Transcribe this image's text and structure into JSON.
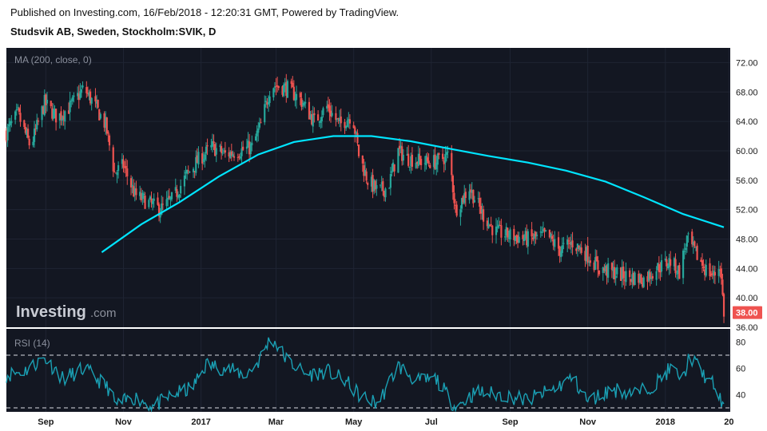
{
  "header": {
    "published": "Published on Investing.com, 16/Feb/2018 - 12:20:31 GMT, Powered by TradingView.",
    "symbol": "Studsvik AB, Sweden, Stockholm:SVIK, D"
  },
  "watermark": {
    "brand": "Investing",
    "suffix": ".com"
  },
  "colors": {
    "background": "#131722",
    "up": "#26a69a",
    "down": "#ef5350",
    "ma": "#00e5ff",
    "rsi": "#1aa0b4",
    "price_badge": "#ef5350"
  },
  "chart_data": [
    {
      "type": "candlestick",
      "indicator_label": "MA (200, close, 0)",
      "ylim": [
        36,
        74
      ],
      "y_ticks": [
        36,
        40,
        44,
        48,
        52,
        56,
        60,
        64,
        68,
        72
      ],
      "y_tick_labels": [
        "36.00",
        "40.00",
        "44.00",
        "48.00",
        "52.00",
        "56.00",
        "60.00",
        "64.00",
        "68.00",
        "72.00"
      ],
      "x_tick_labels": [
        "Sep",
        "Nov",
        "2017",
        "Mar",
        "May",
        "Jul",
        "Sep",
        "Nov",
        "2018",
        "20"
      ],
      "x_ticks": [
        "2016-09-01",
        "2016-11-01",
        "2017-01-01",
        "2017-03-01",
        "2017-05-01",
        "2017-07-01",
        "2017-09-01",
        "2017-11-01",
        "2018-01-01",
        "2018-02-20"
      ],
      "x_range": [
        "2016-08-01",
        "2018-02-21"
      ],
      "grid": true,
      "last_price_label": "38.00",
      "last_price": 38.0,
      "close_path": [
        [
          "2016-08-01",
          62.5
        ],
        [
          "2016-08-10",
          65.0
        ],
        [
          "2016-08-20",
          60.5
        ],
        [
          "2016-08-31",
          66.5
        ],
        [
          "2016-09-10",
          64.5
        ],
        [
          "2016-09-20",
          66.0
        ],
        [
          "2016-10-01",
          68.5
        ],
        [
          "2016-10-10",
          66.0
        ],
        [
          "2016-10-18",
          63.5
        ],
        [
          "2016-10-25",
          57.0
        ],
        [
          "2016-11-01",
          58.0
        ],
        [
          "2016-11-10",
          54.0
        ],
        [
          "2016-11-20",
          53.0
        ],
        [
          "2016-11-30",
          52.0
        ],
        [
          "2016-12-10",
          53.5
        ],
        [
          "2016-12-20",
          56.5
        ],
        [
          "2016-12-31",
          59.0
        ],
        [
          "2017-01-10",
          60.5
        ],
        [
          "2017-01-20",
          59.5
        ],
        [
          "2017-01-31",
          60.0
        ],
        [
          "2017-02-10",
          60.5
        ],
        [
          "2017-02-17",
          63.5
        ],
        [
          "2017-02-25",
          69.0
        ],
        [
          "2017-03-10",
          68.5
        ],
        [
          "2017-03-20",
          67.0
        ],
        [
          "2017-03-31",
          64.0
        ],
        [
          "2017-04-10",
          66.0
        ],
        [
          "2017-04-20",
          63.5
        ],
        [
          "2017-04-30",
          65.0
        ],
        [
          "2017-05-05",
          59.5
        ],
        [
          "2017-05-12",
          56.0
        ],
        [
          "2017-05-20",
          54.5
        ],
        [
          "2017-05-28",
          55.0
        ],
        [
          "2017-06-05",
          60.0
        ],
        [
          "2017-06-12",
          59.0
        ],
        [
          "2017-06-25",
          58.5
        ],
        [
          "2017-07-05",
          58.5
        ],
        [
          "2017-07-15",
          59.5
        ],
        [
          "2017-07-20",
          52.0
        ],
        [
          "2017-07-31",
          55.0
        ],
        [
          "2017-08-10",
          51.5
        ],
        [
          "2017-08-20",
          49.0
        ],
        [
          "2017-08-31",
          48.5
        ],
        [
          "2017-09-15",
          48.0
        ],
        [
          "2017-09-30",
          48.5
        ],
        [
          "2017-10-10",
          46.5
        ],
        [
          "2017-10-20",
          47.5
        ],
        [
          "2017-10-31",
          46.0
        ],
        [
          "2017-11-10",
          44.0
        ],
        [
          "2017-11-20",
          43.5
        ],
        [
          "2017-11-30",
          43.0
        ],
        [
          "2017-12-15",
          42.5
        ],
        [
          "2017-12-25",
          44.0
        ],
        [
          "2018-01-05",
          45.0
        ],
        [
          "2018-01-12",
          43.5
        ],
        [
          "2018-01-18",
          48.0
        ],
        [
          "2018-01-25",
          46.0
        ],
        [
          "2018-02-01",
          44.0
        ],
        [
          "2018-02-08",
          43.0
        ],
        [
          "2018-02-13",
          44.5
        ],
        [
          "2018-02-16",
          38.0
        ]
      ],
      "ma_200": [
        [
          "2016-10-15",
          46.2
        ],
        [
          "2016-11-15",
          50.0
        ],
        [
          "2016-12-15",
          53.0
        ],
        [
          "2017-01-15",
          56.5
        ],
        [
          "2017-02-15",
          59.5
        ],
        [
          "2017-03-15",
          61.2
        ],
        [
          "2017-04-15",
          62.0
        ],
        [
          "2017-05-15",
          62.0
        ],
        [
          "2017-06-15",
          61.3
        ],
        [
          "2017-07-15",
          60.3
        ],
        [
          "2017-08-15",
          59.3
        ],
        [
          "2017-09-15",
          58.4
        ],
        [
          "2017-10-15",
          57.3
        ],
        [
          "2017-11-15",
          55.8
        ],
        [
          "2017-12-15",
          53.7
        ],
        [
          "2018-01-15",
          51.4
        ],
        [
          "2018-02-16",
          49.6
        ]
      ]
    },
    {
      "type": "line",
      "indicator_label": "RSI (14)",
      "ylim": [
        27,
        90
      ],
      "y_ticks": [
        40,
        60,
        80
      ],
      "y_tick_labels": [
        "40",
        "60",
        "80"
      ],
      "reference_lines": [
        30,
        70
      ],
      "rsi_path": [
        [
          "2016-08-01",
          55
        ],
        [
          "2016-08-15",
          58
        ],
        [
          "2016-08-31",
          68
        ],
        [
          "2016-09-15",
          52
        ],
        [
          "2016-10-01",
          60
        ],
        [
          "2016-10-20",
          45
        ],
        [
          "2016-10-26",
          32
        ],
        [
          "2016-11-10",
          38
        ],
        [
          "2016-11-25",
          31
        ],
        [
          "2016-12-10",
          40
        ],
        [
          "2016-12-25",
          45
        ],
        [
          "2017-01-05",
          63
        ],
        [
          "2017-01-20",
          60
        ],
        [
          "2017-02-05",
          55
        ],
        [
          "2017-02-15",
          65
        ],
        [
          "2017-02-25",
          84
        ],
        [
          "2017-03-10",
          66
        ],
        [
          "2017-03-25",
          55
        ],
        [
          "2017-04-10",
          58
        ],
        [
          "2017-04-25",
          50
        ],
        [
          "2017-05-05",
          40
        ],
        [
          "2017-05-20",
          33
        ],
        [
          "2017-06-05",
          62
        ],
        [
          "2017-06-20",
          50
        ],
        [
          "2017-07-05",
          52
        ],
        [
          "2017-07-20",
          30
        ],
        [
          "2017-08-05",
          42
        ],
        [
          "2017-08-25",
          40
        ],
        [
          "2017-09-15",
          36
        ],
        [
          "2017-10-05",
          44
        ],
        [
          "2017-10-20",
          53
        ],
        [
          "2017-11-01",
          35
        ],
        [
          "2017-11-20",
          44
        ],
        [
          "2017-12-10",
          41
        ],
        [
          "2017-12-25",
          49
        ],
        [
          "2018-01-05",
          60
        ],
        [
          "2018-01-15",
          52
        ],
        [
          "2018-01-20",
          70
        ],
        [
          "2018-02-01",
          54
        ],
        [
          "2018-02-10",
          45
        ],
        [
          "2018-02-16",
          28
        ]
      ]
    }
  ]
}
